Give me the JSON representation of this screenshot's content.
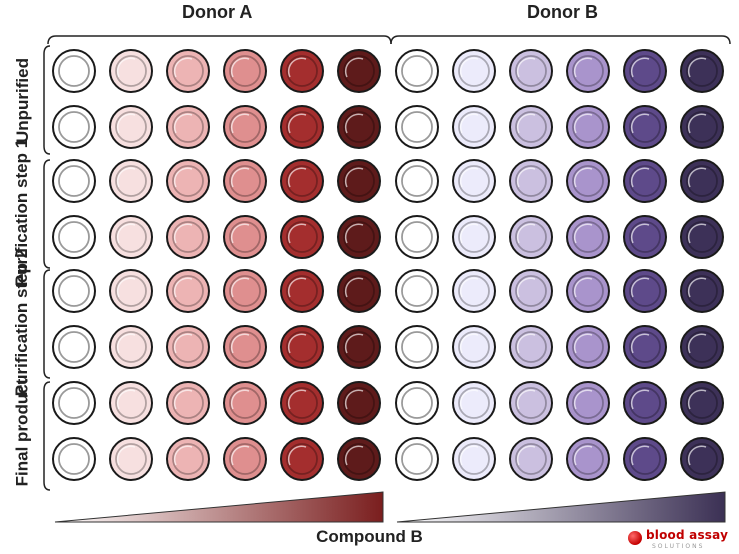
{
  "donors": [
    {
      "label": "Donor A",
      "colors": [
        "#ffffff",
        "#f7e0e0",
        "#edb4b4",
        "#df8f8f",
        "#a42e2e",
        "#5e1b1b"
      ]
    },
    {
      "label": "Donor B",
      "colors": [
        "#ffffff",
        "#ecebfb",
        "#cbc0e0",
        "#a994cc",
        "#5e4a8a",
        "#3d3158"
      ]
    }
  ],
  "row_groups": [
    {
      "label": "Unpurified"
    },
    {
      "label": "Purification\nstep 1"
    },
    {
      "label": "Purification\nstep 2"
    },
    {
      "label": "Final\nproduct"
    }
  ],
  "gradient_colors": {
    "a": "#7a1e1e",
    "b": "#3b3054"
  },
  "axis_title": "Compound B",
  "logo": {
    "text": "blood assay",
    "sub": "SOLUTIONS"
  }
}
